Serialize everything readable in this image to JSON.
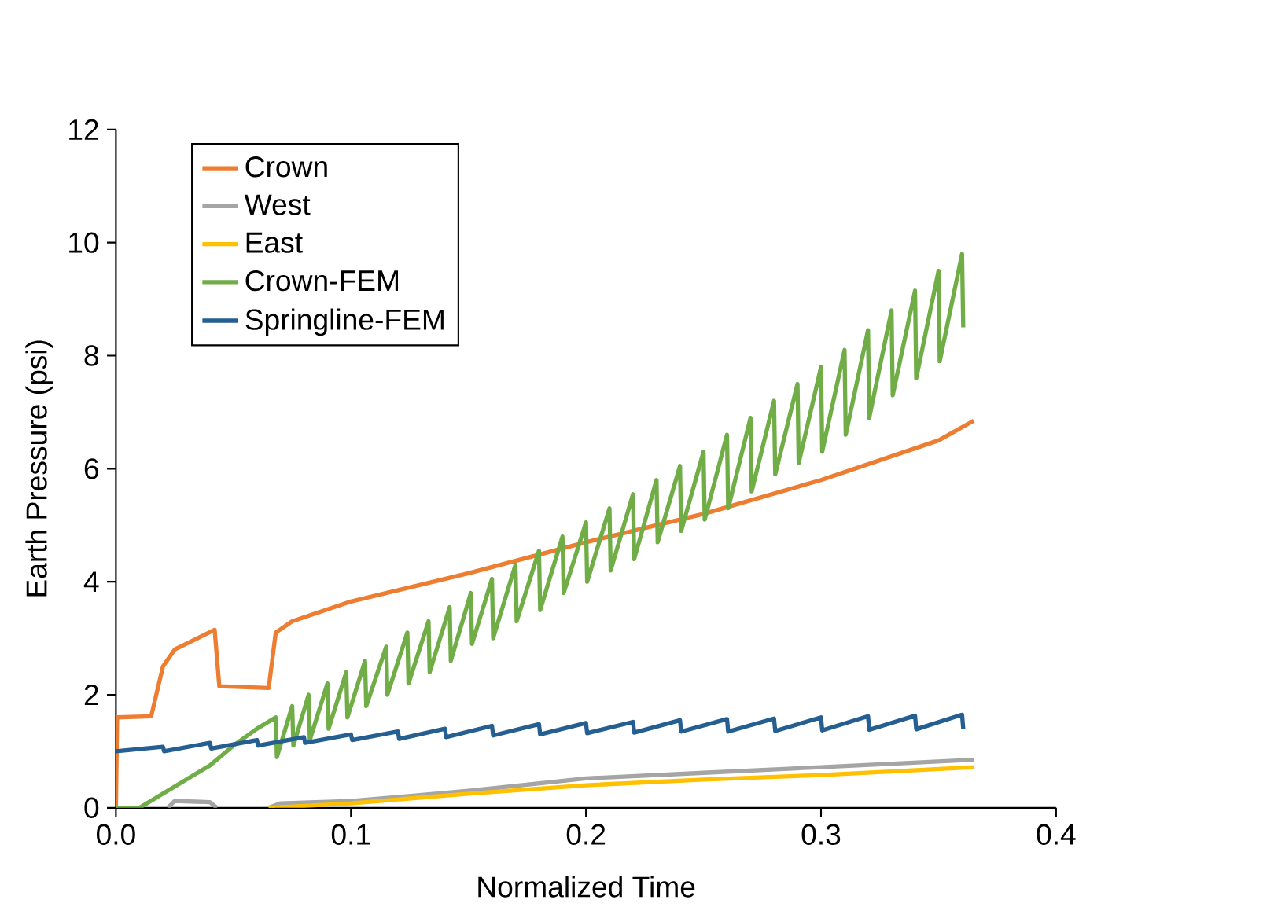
{
  "chart_data": {
    "type": "line",
    "xlabel": "Normalized Time",
    "ylabel": "Earth Pressure (psi)",
    "xlim": [
      0,
      0.4
    ],
    "ylim": [
      0,
      12
    ],
    "xticks": [
      {
        "value": 0,
        "label": "0.0"
      },
      0.1,
      0.2,
      0.3,
      0.4
    ],
    "yticks": [
      0,
      2,
      4,
      6,
      8,
      10,
      12
    ],
    "grid": false,
    "legend": "top left",
    "marker": "none",
    "line_style": "solid",
    "series": [
      {
        "name": "Crown",
        "color": "#ed7d31",
        "x": [
          0,
          0.0005,
          0.015,
          0.02,
          0.025,
          0.042,
          0.044,
          0.065,
          0.068,
          0.075,
          0.1,
          0.15,
          0.2,
          0.25,
          0.3,
          0.35,
          0.365
        ],
        "values": [
          0,
          1.6,
          1.62,
          2.5,
          2.8,
          3.15,
          2.15,
          2.12,
          3.1,
          3.3,
          3.65,
          4.15,
          4.7,
          5.2,
          5.8,
          6.5,
          6.85
        ]
      },
      {
        "name": "West",
        "color": "#a5a5a5",
        "x": [
          0.022,
          0.025,
          0.04,
          0.043,
          0.05,
          0.065,
          0.07,
          0.1,
          0.15,
          0.2,
          0.25,
          0.3,
          0.365
        ],
        "values": [
          0,
          0.12,
          0.1,
          0,
          null,
          0,
          0.08,
          0.12,
          0.3,
          0.52,
          0.62,
          0.72,
          0.85
        ]
      },
      {
        "name": "East",
        "color": "#ffc000",
        "x": [
          0.065,
          0.1,
          0.15,
          0.2,
          0.25,
          0.3,
          0.365
        ],
        "values": [
          0,
          0.08,
          0.25,
          0.4,
          0.5,
          0.58,
          0.72
        ]
      },
      {
        "name": "Crown-FEM",
        "color": "#70ad47",
        "x": [
          0,
          0.01,
          0.02,
          0.04,
          0.05,
          0.06,
          0.068,
          0.0685,
          0.075,
          0.0755,
          0.082,
          0.0825,
          0.09,
          0.0905,
          0.098,
          0.0985,
          0.106,
          0.1065,
          0.115,
          0.1155,
          0.124,
          0.1245,
          0.133,
          0.1335,
          0.142,
          0.1425,
          0.151,
          0.1515,
          0.16,
          0.1605,
          0.17,
          0.1705,
          0.18,
          0.1805,
          0.19,
          0.1905,
          0.2,
          0.2005,
          0.21,
          0.2105,
          0.22,
          0.2205,
          0.23,
          0.2305,
          0.24,
          0.2405,
          0.25,
          0.2505,
          0.26,
          0.2605,
          0.27,
          0.2705,
          0.28,
          0.2805,
          0.29,
          0.2905,
          0.3,
          0.3005,
          0.31,
          0.3105,
          0.32,
          0.3205,
          0.33,
          0.3305,
          0.34,
          0.3405,
          0.35,
          0.3505,
          0.36,
          0.3605
        ],
        "values": [
          0,
          0,
          0.25,
          0.75,
          1.1,
          1.4,
          1.6,
          0.9,
          1.8,
          1.1,
          2.0,
          1.2,
          2.2,
          1.4,
          2.4,
          1.6,
          2.6,
          1.8,
          2.85,
          2.0,
          3.1,
          2.2,
          3.3,
          2.4,
          3.55,
          2.6,
          3.8,
          2.9,
          4.05,
          3.0,
          4.3,
          3.3,
          4.55,
          3.5,
          4.8,
          3.8,
          5.05,
          4.0,
          5.3,
          4.2,
          5.55,
          4.4,
          5.8,
          4.7,
          6.05,
          4.9,
          6.3,
          5.1,
          6.6,
          5.3,
          6.9,
          5.6,
          7.2,
          5.9,
          7.5,
          6.1,
          7.8,
          6.3,
          8.1,
          6.6,
          8.45,
          6.9,
          8.8,
          7.3,
          9.15,
          7.6,
          9.5,
          7.9,
          9.8,
          8.5
        ]
      },
      {
        "name": "Springline-FEM",
        "color": "#255e91",
        "x": [
          0,
          0.02,
          0.0205,
          0.04,
          0.0405,
          0.06,
          0.0605,
          0.08,
          0.0805,
          0.1,
          0.1005,
          0.12,
          0.1205,
          0.14,
          0.1405,
          0.16,
          0.1605,
          0.18,
          0.1805,
          0.2,
          0.2005,
          0.22,
          0.2205,
          0.24,
          0.2405,
          0.26,
          0.2605,
          0.28,
          0.2805,
          0.3,
          0.3005,
          0.32,
          0.3205,
          0.34,
          0.3405,
          0.36,
          0.3605
        ],
        "values": [
          1.0,
          1.08,
          1.0,
          1.15,
          1.05,
          1.2,
          1.1,
          1.25,
          1.15,
          1.3,
          1.2,
          1.35,
          1.22,
          1.4,
          1.25,
          1.45,
          1.28,
          1.48,
          1.3,
          1.5,
          1.32,
          1.52,
          1.33,
          1.55,
          1.35,
          1.57,
          1.35,
          1.58,
          1.36,
          1.6,
          1.37,
          1.62,
          1.38,
          1.63,
          1.39,
          1.65,
          1.4
        ]
      }
    ]
  }
}
